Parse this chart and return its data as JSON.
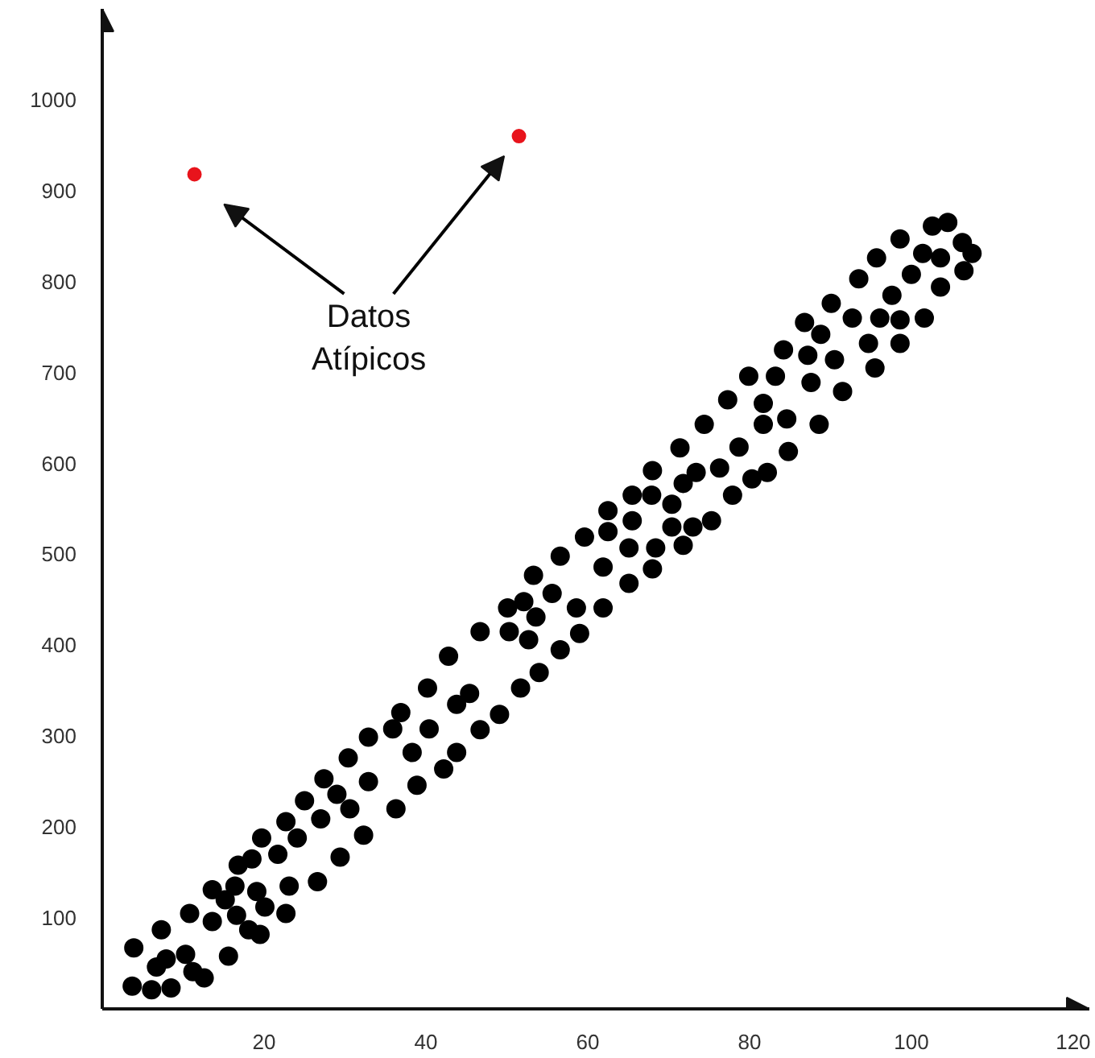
{
  "chart_data": {
    "type": "scatter",
    "marker": "circle",
    "grid": false,
    "xlim": [
      0,
      122
    ],
    "ylim": [
      0,
      1100
    ],
    "xticks": [
      20,
      40,
      60,
      80,
      100,
      120
    ],
    "yticks": [
      100,
      200,
      300,
      400,
      500,
      600,
      700,
      800,
      900,
      1000
    ],
    "annotations": [
      "Datos\nAtípicos"
    ],
    "series": [
      {
        "color": "#000000",
        "x": [
          3.7,
          3.9,
          6.1,
          8.5,
          7.3,
          6.7,
          7.9,
          10.3,
          10.8,
          11.2,
          12.6,
          13.6,
          13.6,
          15.6,
          15.2,
          16.4,
          16.6,
          16.8,
          18.1,
          19.5,
          19.1,
          19.7,
          18.5,
          20.1,
          22.7,
          21.7,
          22.7,
          23.1,
          24.1,
          25,
          26.6,
          27,
          27.4,
          29.4,
          29,
          30.4,
          30.6,
          32.9,
          32.9,
          32.3,
          35.9,
          36.3,
          36.9,
          38.3,
          38.9,
          40.2,
          40.4,
          42.2,
          42.8,
          43.8,
          43.8,
          45.4,
          46.7,
          46.7,
          49.1,
          50.1,
          50.3,
          51.7,
          52.1,
          53.3,
          52.7,
          54,
          55.6,
          56.6,
          53.6,
          56.6,
          58.6,
          59,
          59.6,
          61.9,
          61.9,
          62.5,
          65.1,
          65.1,
          68,
          68.4,
          71.8,
          70.4,
          62.5,
          65.5,
          65.5,
          68,
          67.9,
          70.4,
          71.4,
          71.8,
          73.4,
          73,
          74.4,
          75.3,
          76.3,
          77.3,
          77.9,
          78.7,
          79.9,
          80.3,
          81.7,
          81.7,
          82.2,
          83.2,
          84.2,
          84.6,
          84.8,
          86.8,
          87.2,
          87.6,
          88.6,
          88.8,
          90.1,
          90.5,
          91.5,
          92.7,
          93.5,
          94.7,
          95.5,
          95.7,
          96.1,
          97.6,
          98.6,
          98.6,
          98.6,
          100,
          101.4,
          101.6,
          102.6,
          103.6,
          103.6,
          104.5,
          106.3,
          106.5,
          107.5
        ],
        "values": [
          25,
          67,
          21,
          23,
          87,
          46,
          55,
          60,
          105,
          41,
          34,
          96,
          131,
          58,
          120,
          135,
          103,
          158,
          87,
          82,
          129,
          188,
          165,
          112,
          105,
          170,
          206,
          135,
          188,
          229,
          140,
          209,
          253,
          167,
          236,
          276,
          220,
          299,
          250,
          191,
          308,
          220,
          326,
          282,
          246,
          353,
          308,
          264,
          388,
          335,
          282,
          347,
          415,
          307,
          324,
          441,
          415,
          353,
          448,
          477,
          406,
          370,
          457,
          498,
          431,
          395,
          441,
          413,
          519,
          486,
          441,
          525,
          507,
          468,
          484,
          507,
          510,
          530,
          548,
          565,
          537,
          592,
          565,
          555,
          617,
          578,
          590,
          530,
          643,
          537,
          595,
          670,
          565,
          618,
          696,
          583,
          666,
          643,
          590,
          696,
          725,
          649,
          613,
          755,
          719,
          689,
          643,
          742,
          776,
          714,
          679,
          760,
          803,
          732,
          705,
          826,
          760,
          785,
          847,
          758,
          732,
          808,
          831,
          760,
          861,
          826,
          794,
          865,
          843,
          812,
          831
        ]
      },
      {
        "color": "#e8141c",
        "x": [
          11.4,
          51.5
        ],
        "values": [
          918,
          960
        ]
      }
    ]
  }
}
